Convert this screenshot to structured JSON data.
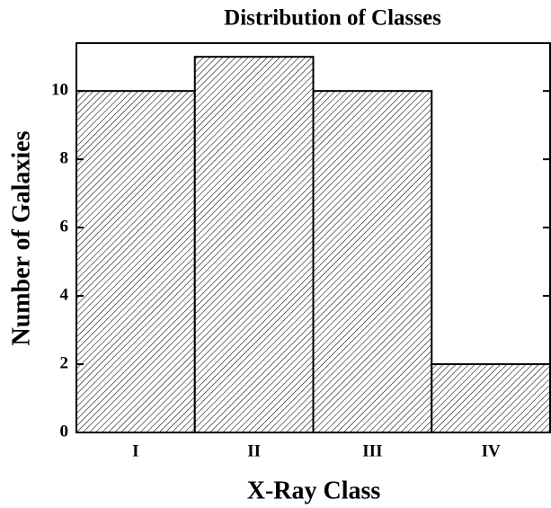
{
  "chart_data": {
    "type": "bar",
    "title": "Distribution of Classes",
    "x_label": "X-Ray Class",
    "y_label": "Number of Galaxies",
    "categories": [
      "I",
      "II",
      "III",
      "IV"
    ],
    "values": [
      10,
      11,
      10,
      2
    ],
    "color": "#000000",
    "hatch": "diagonal",
    "ylim": [
      0,
      11.4
    ],
    "yticks": [
      0,
      2,
      4,
      6,
      8,
      10
    ],
    "grid": false
  }
}
